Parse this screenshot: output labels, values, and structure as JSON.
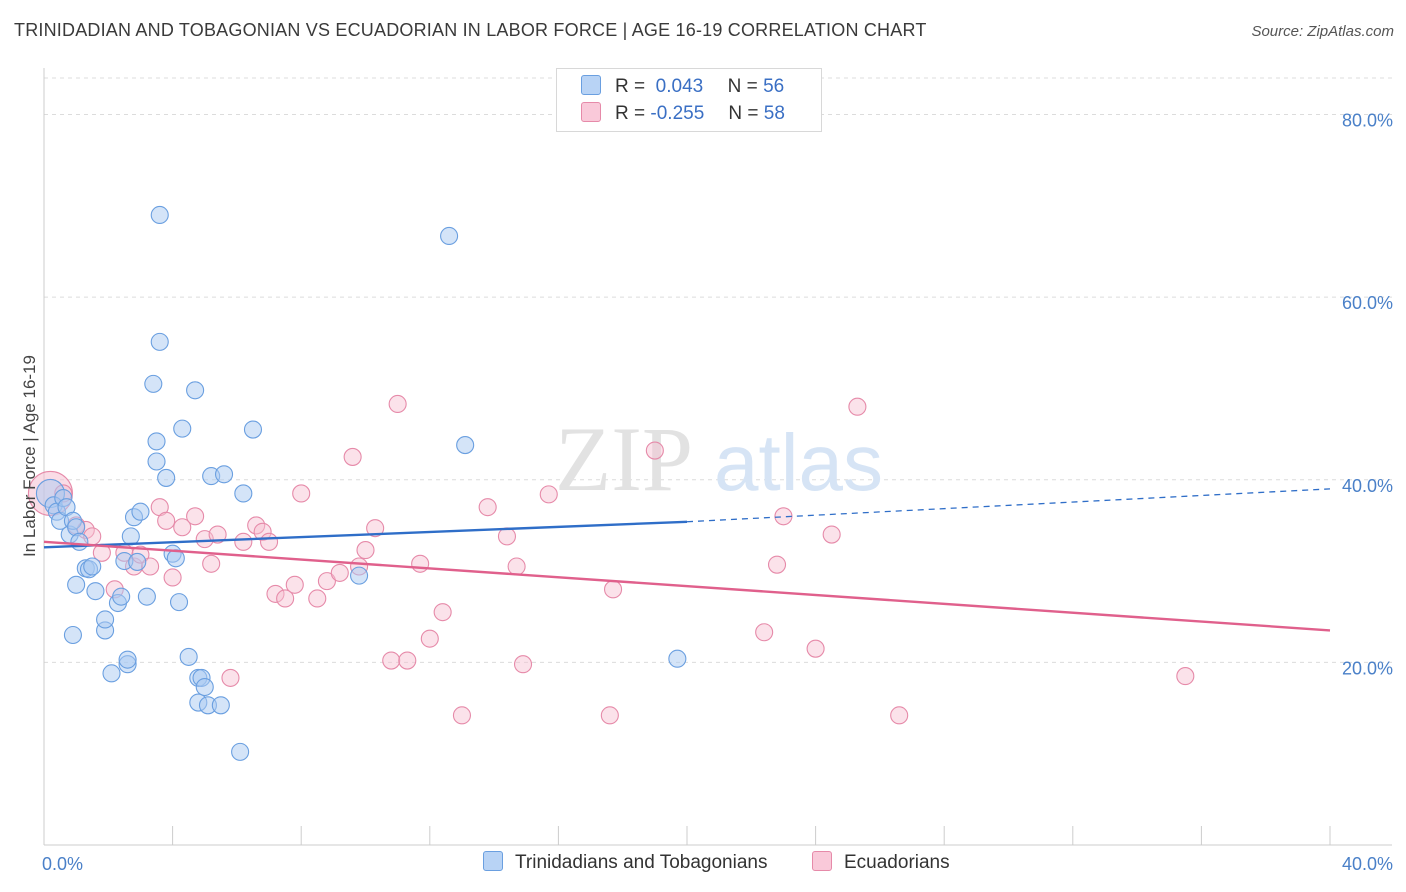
{
  "title": "TRINIDADIAN AND TOBAGONIAN VS ECUADORIAN IN LABOR FORCE | AGE 16-19 CORRELATION CHART",
  "source": "Source: ZipAtlas.com",
  "watermark": {
    "zip": "ZIP",
    "atlas": "atlas"
  },
  "legend": {
    "r_label": "R =",
    "n_label": "N =",
    "rows": [
      {
        "r": "0.043",
        "n": "56"
      },
      {
        "r": "-0.255",
        "n": "58"
      }
    ]
  },
  "chart_data": {
    "type": "scatter",
    "xlabel": "",
    "ylabel": "In Labor Force | Age 16-19",
    "xlim": [
      0,
      40
    ],
    "ylim": [
      0,
      84
    ],
    "x_tick_labels": [
      "0.0%",
      "40.0%"
    ],
    "y_ticks": [
      {
        "value": 20,
        "label": "20.0%"
      },
      {
        "value": 40,
        "label": "40.0%"
      },
      {
        "value": 60,
        "label": "60.0%"
      },
      {
        "value": 80,
        "label": "80.0%"
      }
    ],
    "grid": true,
    "colors": {
      "series1_fill": "#a9c9f2",
      "series1_stroke": "#6a9fe0",
      "series1_line": "#2f6ec8",
      "series2_fill": "#f6bfd1",
      "series2_stroke": "#e68aa9",
      "series2_line": "#e0608c"
    },
    "series": [
      {
        "name": "Trinidadians and Tobagonians",
        "r": 0.043,
        "n": 56,
        "trend": {
          "x0": 0,
          "y0": 32.6,
          "x1": 20,
          "y1": 35.4,
          "dashed_to": 40,
          "dashed_y": 39.0
        },
        "points": [
          [
            0.2,
            38.5
          ],
          [
            0.3,
            37.2
          ],
          [
            0.4,
            36.5
          ],
          [
            0.5,
            35.5
          ],
          [
            0.6,
            38.0
          ],
          [
            0.7,
            37.0
          ],
          [
            0.8,
            34.0
          ],
          [
            0.9,
            35.5
          ],
          [
            1.0,
            34.8
          ],
          [
            1.1,
            33.2
          ],
          [
            1.3,
            30.3
          ],
          [
            1.4,
            30.2
          ],
          [
            1.5,
            30.5
          ],
          [
            1.6,
            27.8
          ],
          [
            0.9,
            23.0
          ],
          [
            1.9,
            23.5
          ],
          [
            1.9,
            24.7
          ],
          [
            2.3,
            26.5
          ],
          [
            2.4,
            27.2
          ],
          [
            2.1,
            18.8
          ],
          [
            2.6,
            19.8
          ],
          [
            2.6,
            20.3
          ],
          [
            2.5,
            31.1
          ],
          [
            2.9,
            31.0
          ],
          [
            2.8,
            35.9
          ],
          [
            3.0,
            36.5
          ],
          [
            3.2,
            27.2
          ],
          [
            3.5,
            44.2
          ],
          [
            3.4,
            50.5
          ],
          [
            3.6,
            55.1
          ],
          [
            3.6,
            69.0
          ],
          [
            3.8,
            40.2
          ],
          [
            4.0,
            31.9
          ],
          [
            4.1,
            31.4
          ],
          [
            4.2,
            26.6
          ],
          [
            4.3,
            45.6
          ],
          [
            4.5,
            20.6
          ],
          [
            4.7,
            49.8
          ],
          [
            4.8,
            18.3
          ],
          [
            4.8,
            15.6
          ],
          [
            4.9,
            18.3
          ],
          [
            5.0,
            17.3
          ],
          [
            5.1,
            15.3
          ],
          [
            5.2,
            40.4
          ],
          [
            5.5,
            15.3
          ],
          [
            5.6,
            40.6
          ],
          [
            6.2,
            38.5
          ],
          [
            6.5,
            45.5
          ],
          [
            6.1,
            10.2
          ],
          [
            9.8,
            29.5
          ],
          [
            12.6,
            66.7
          ],
          [
            13.1,
            43.8
          ],
          [
            19.7,
            20.4
          ],
          [
            1.0,
            28.5
          ],
          [
            3.5,
            42.0
          ],
          [
            2.7,
            33.8
          ]
        ]
      },
      {
        "name": "Ecuadorians",
        "r": -0.255,
        "n": 58,
        "trend": {
          "x0": 0,
          "y0": 33.2,
          "x1": 40,
          "y1": 23.5
        },
        "points": [
          [
            0.2,
            38.5
          ],
          [
            0.6,
            38.5
          ],
          [
            1.0,
            35.0
          ],
          [
            1.3,
            34.5
          ],
          [
            1.5,
            33.8
          ],
          [
            1.8,
            32.0
          ],
          [
            2.2,
            28.0
          ],
          [
            2.5,
            32.0
          ],
          [
            2.8,
            30.5
          ],
          [
            3.0,
            31.8
          ],
          [
            3.3,
            30.5
          ],
          [
            3.6,
            37.0
          ],
          [
            3.8,
            35.5
          ],
          [
            4.0,
            29.3
          ],
          [
            4.3,
            34.8
          ],
          [
            4.7,
            36.0
          ],
          [
            5.0,
            33.5
          ],
          [
            5.2,
            30.8
          ],
          [
            5.4,
            34.0
          ],
          [
            5.8,
            18.3
          ],
          [
            6.2,
            33.2
          ],
          [
            6.6,
            35.0
          ],
          [
            6.8,
            34.3
          ],
          [
            7.0,
            33.2
          ],
          [
            7.2,
            27.5
          ],
          [
            7.5,
            27.0
          ],
          [
            7.8,
            28.5
          ],
          [
            8.0,
            38.5
          ],
          [
            8.5,
            27.0
          ],
          [
            8.8,
            28.9
          ],
          [
            9.2,
            29.8
          ],
          [
            9.6,
            42.5
          ],
          [
            9.8,
            30.5
          ],
          [
            10.0,
            32.3
          ],
          [
            10.3,
            34.7
          ],
          [
            10.8,
            20.2
          ],
          [
            11.0,
            48.3
          ],
          [
            11.3,
            20.2
          ],
          [
            11.7,
            30.8
          ],
          [
            12.0,
            22.6
          ],
          [
            12.4,
            25.5
          ],
          [
            13.0,
            14.2
          ],
          [
            13.8,
            37.0
          ],
          [
            14.4,
            33.8
          ],
          [
            14.7,
            30.5
          ],
          [
            14.9,
            19.8
          ],
          [
            15.7,
            38.4
          ],
          [
            17.6,
            14.2
          ],
          [
            17.7,
            28.0
          ],
          [
            19.0,
            43.2
          ],
          [
            22.4,
            23.3
          ],
          [
            22.8,
            30.7
          ],
          [
            23.0,
            36.0
          ],
          [
            24.0,
            21.5
          ],
          [
            24.5,
            34.0
          ],
          [
            25.3,
            48.0
          ],
          [
            26.6,
            14.2
          ],
          [
            35.5,
            18.5
          ]
        ]
      }
    ]
  },
  "bottom_legend": [
    "Trinidadians and Tobagonians",
    "Ecuadorians"
  ]
}
